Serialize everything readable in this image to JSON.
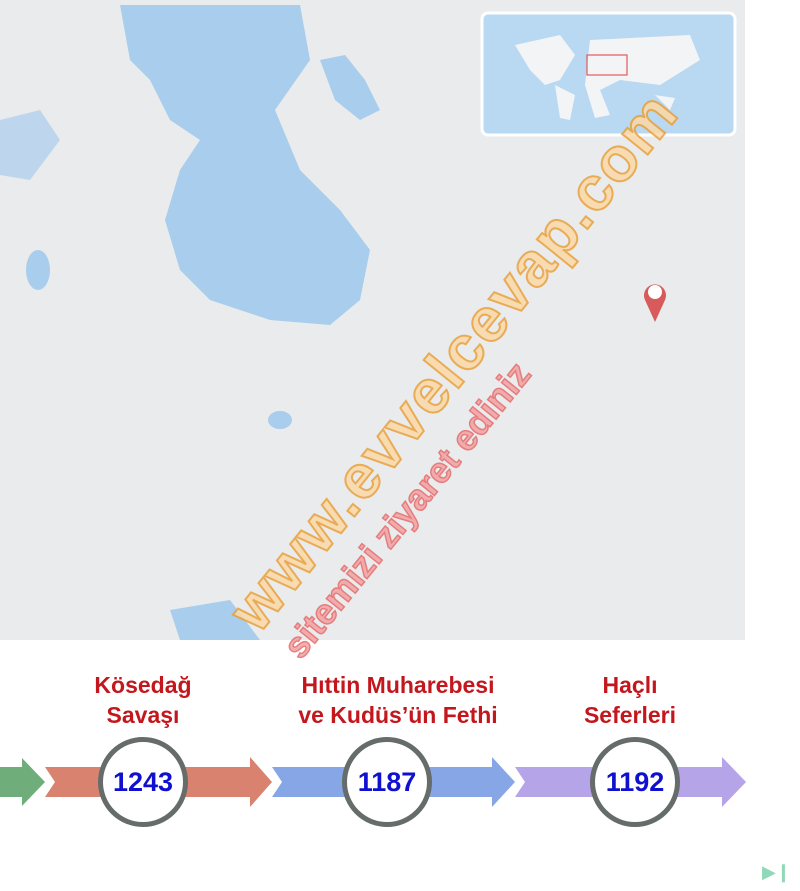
{
  "watermark": {
    "line1": "www.evvelcevap.com",
    "line2": "sitemizi ziyaret ediniz"
  },
  "timeline": [
    {
      "title_line1": "Kösedağ",
      "title_line2": "Savaşı",
      "year": "1243",
      "color": "#d9826f"
    },
    {
      "title_line1": "Hıttin Muharebesi",
      "title_line2": "ve Kudüs’ün Fethi",
      "year": "1187",
      "color": "#86a6e6"
    },
    {
      "title_line1": "Haçlı",
      "title_line2": "Seferleri",
      "year": "1192",
      "color": "#b6a4e8"
    }
  ],
  "colors": {
    "water": "#a9cdec",
    "land": "#eceef0",
    "label": "#c3171d",
    "year": "#1010d0",
    "first_arrow": "#6fae7a"
  },
  "icons": {
    "map_marker": "location-pin-icon",
    "next": "next-page-icon"
  }
}
